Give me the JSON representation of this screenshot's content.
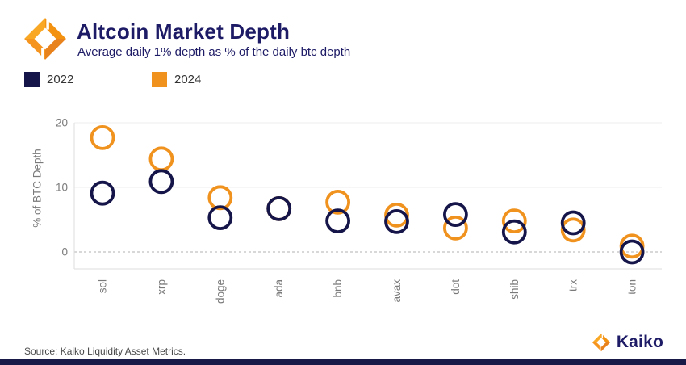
{
  "header": {
    "title": "Altcoin Market Depth",
    "subtitle": "Average daily 1% depth as % of the daily btc depth"
  },
  "chart_data": {
    "type": "scatter",
    "categories": [
      "sol",
      "xrp",
      "doge",
      "ada",
      "bnb",
      "avax",
      "dot",
      "shib",
      "trx",
      "ton"
    ],
    "series": [
      {
        "name": "2022",
        "color": "#15154a",
        "values": [
          9.1,
          10.9,
          5.3,
          6.7,
          4.8,
          4.7,
          5.8,
          3.1,
          4.5,
          0.0
        ]
      },
      {
        "name": "2024",
        "color": "#f0921e",
        "values": [
          17.7,
          14.4,
          8.4,
          6.7,
          7.7,
          5.7,
          3.7,
          4.8,
          3.4,
          0.9
        ]
      }
    ],
    "title": "Altcoin Market Depth",
    "subtitle": "Average daily 1% depth as % of the daily btc depth",
    "xlabel": "",
    "ylabel": "% of BTC Depth",
    "yticks": [
      0,
      10,
      20
    ],
    "ylim": [
      -2.6,
      21.5
    ],
    "grid": true,
    "zero_line": "dashed",
    "marker": "open-circle",
    "legend_position": "top-left",
    "draw_order_note": "2024 drawn first, 2022 drawn on top (ada 2024 hidden behind equal 2022 value)"
  },
  "footer": {
    "source": "Source: Kaiko Liquidity Asset Metrics.",
    "brand": "Kaiko"
  },
  "colors": {
    "navy_2022": "#15154a",
    "orange_2024": "#f0921e",
    "title_navy": "#1e1b66",
    "axis_text_gray": "#7a7a7a",
    "gridline": "#ececec",
    "zero_line": "#b0b0b0",
    "bottom_bar_navy": "#191947"
  }
}
